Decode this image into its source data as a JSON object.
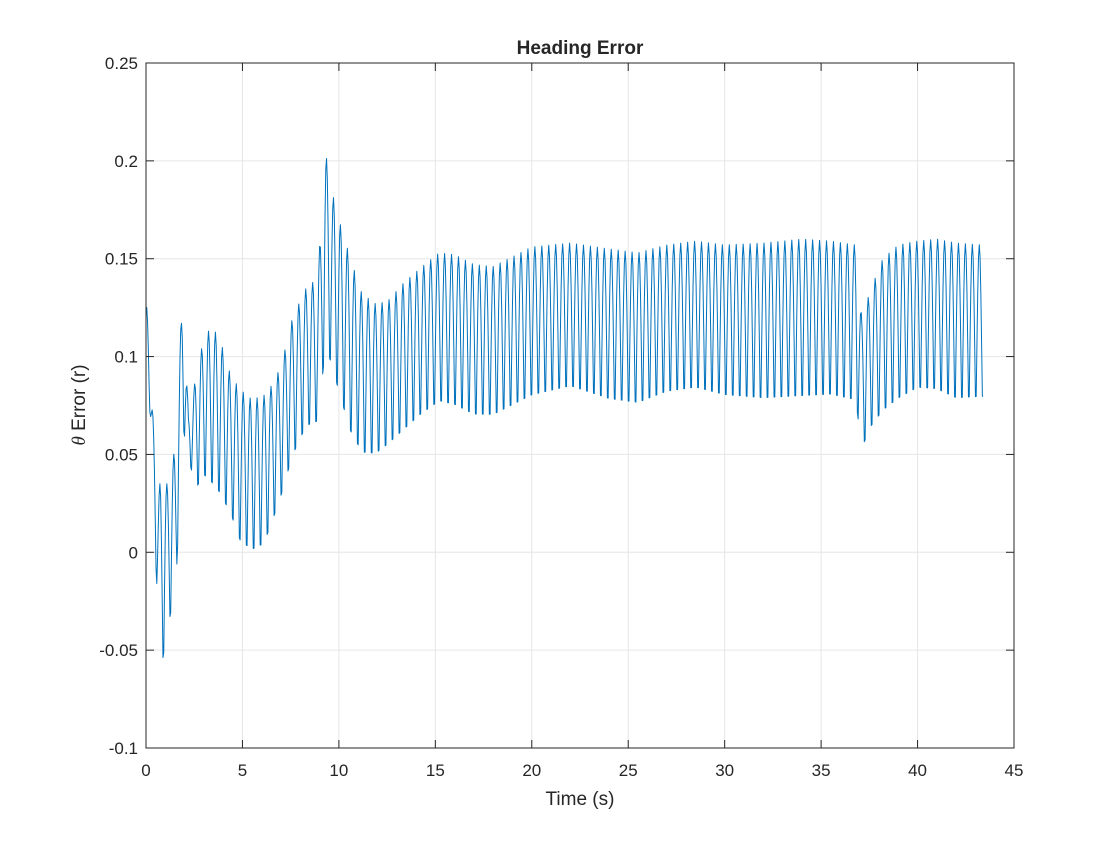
{
  "chart_data": {
    "type": "line",
    "title": "Heading Error",
    "xlabel": "Time (s)",
    "ylabel_symbol": "θ",
    "ylabel": " Error (r)",
    "xlim": [
      0,
      45
    ],
    "ylim": [
      -0.1,
      0.25
    ],
    "xticks": [
      0,
      5,
      10,
      15,
      20,
      25,
      30,
      35,
      40,
      45
    ],
    "xtick_labels": [
      "0",
      "5",
      "10",
      "15",
      "20",
      "25",
      "30",
      "35",
      "40",
      "45"
    ],
    "yticks": [
      -0.1,
      -0.05,
      0,
      0.05,
      0.1,
      0.15,
      0.2,
      0.25
    ],
    "ytick_labels": [
      "-0.1",
      "-0.05",
      "0",
      "0.05",
      "0.1",
      "0.15",
      "0.2",
      "0.25"
    ],
    "grid": true,
    "legend": "none",
    "colors": {
      "series": "#0072BD",
      "grid": "#e6e6e6",
      "axes": "#262626"
    },
    "series": [
      {
        "period_s": 0.36,
        "x_end": 43.4,
        "peak_envelope": {
          "x": [
            0.05,
            0.55,
            1.1,
            1.55,
            1.9,
            2.2,
            2.6,
            3.0,
            3.4,
            3.8,
            4.4,
            4.9,
            5.5,
            6.1,
            6.5,
            7.0,
            7.6,
            8.3,
            8.9,
            9.3,
            9.6,
            10.0,
            10.6,
            11.2,
            11.9,
            12.5,
            13.3,
            14.2,
            15.2,
            16.0,
            17.0,
            18.0,
            19.0,
            20.0,
            22.0,
            24.0,
            25.5,
            27.0,
            28.5,
            30.0,
            32.0,
            34.0,
            35.5,
            36.8,
            37.1,
            37.6,
            38.2,
            39.0,
            40.0,
            41.0,
            42.0,
            43.4
          ],
          "y": [
            0.125,
            0.035,
            0.035,
            0.055,
            0.137,
            0.07,
            0.09,
            0.11,
            0.115,
            0.11,
            0.09,
            0.083,
            0.078,
            0.08,
            0.085,
            0.095,
            0.12,
            0.135,
            0.14,
            0.205,
            0.186,
            0.17,
            0.15,
            0.132,
            0.127,
            0.128,
            0.137,
            0.145,
            0.153,
            0.152,
            0.147,
            0.146,
            0.151,
            0.156,
            0.158,
            0.155,
            0.153,
            0.157,
            0.159,
            0.157,
            0.158,
            0.16,
            0.159,
            0.157,
            0.12,
            0.135,
            0.15,
            0.157,
            0.159,
            0.16,
            0.158,
            0.157
          ]
        },
        "trough_envelope": {
          "x": [
            0.05,
            0.3,
            0.8,
            1.1,
            1.55,
            1.9,
            2.2,
            2.6,
            3.0,
            3.4,
            3.8,
            4.4,
            4.9,
            5.5,
            6.1,
            6.5,
            7.0,
            7.6,
            8.3,
            8.9,
            9.3,
            9.6,
            10.0,
            10.6,
            11.2,
            11.9,
            12.5,
            13.3,
            14.2,
            15.2,
            16.0,
            17.0,
            18.0,
            19.0,
            20.0,
            22.0,
            24.0,
            25.5,
            27.0,
            28.5,
            30.0,
            32.0,
            34.0,
            35.5,
            36.8,
            37.1,
            37.6,
            38.2,
            39.0,
            40.0,
            41.0,
            42.0,
            43.4
          ],
          "y": [
            0.125,
            0.03,
            -0.072,
            -0.05,
            -0.028,
            0.055,
            0.045,
            0.025,
            0.03,
            0.025,
            0.02,
            0.01,
            -0.005,
            -0.009,
            -0.006,
            0.005,
            0.02,
            0.04,
            0.055,
            0.057,
            0.09,
            0.085,
            0.07,
            0.05,
            0.04,
            0.04,
            0.045,
            0.052,
            0.06,
            0.067,
            0.065,
            0.06,
            0.06,
            0.065,
            0.07,
            0.075,
            0.068,
            0.066,
            0.072,
            0.074,
            0.07,
            0.068,
            0.069,
            0.07,
            0.067,
            0.044,
            0.055,
            0.062,
            0.068,
            0.074,
            0.073,
            0.068,
            0.069
          ]
        }
      }
    ]
  }
}
